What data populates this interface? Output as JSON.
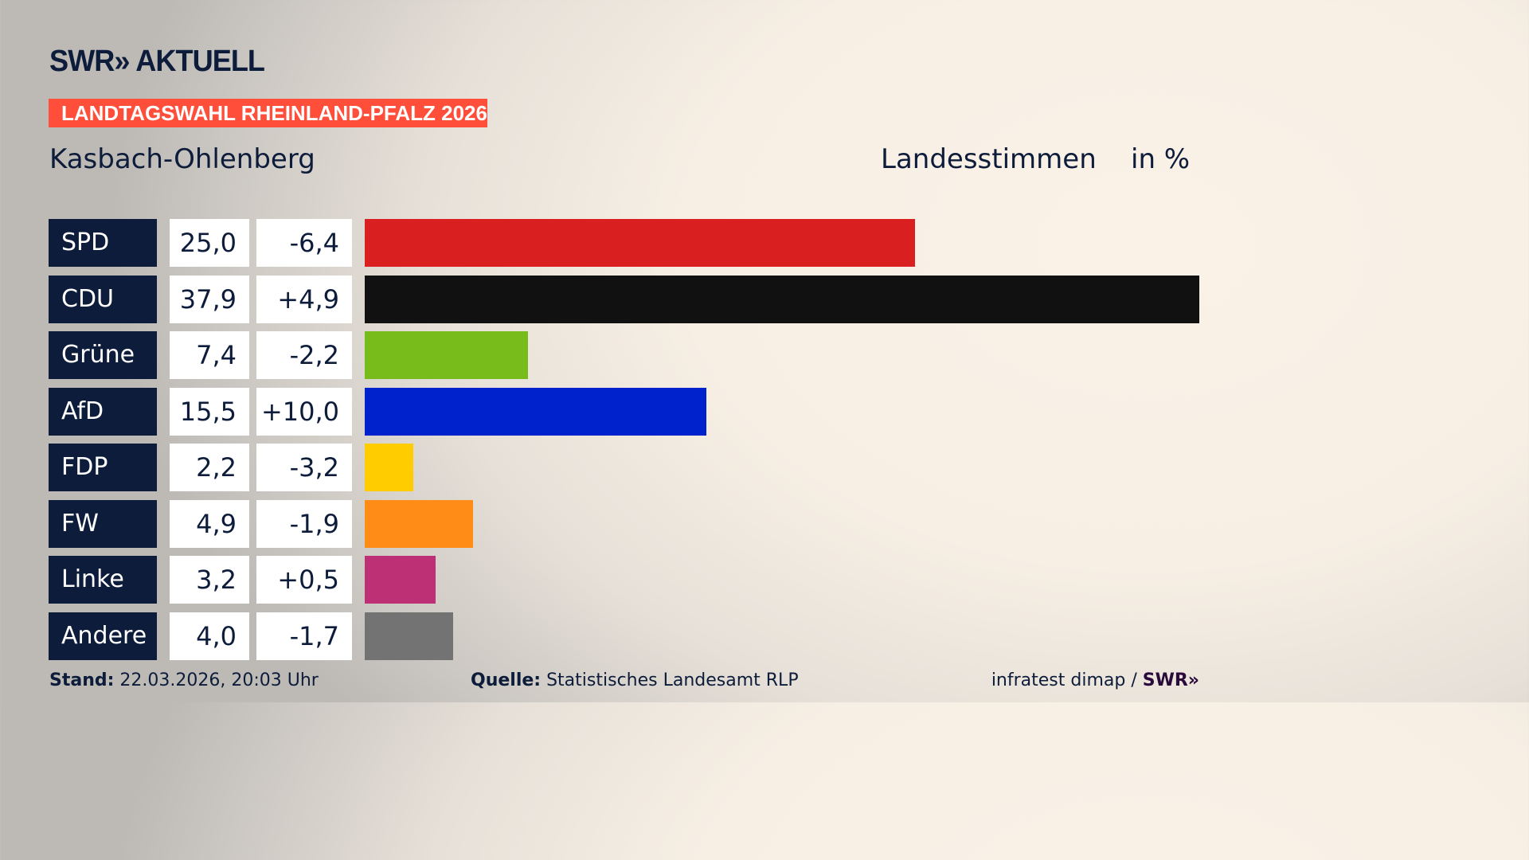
{
  "header": {
    "logo": "SWR» AKTUELL",
    "banner": "LANDTAGSWAHL RHEINLAND-PFALZ 2026",
    "location": "Kasbach-Ohlenberg",
    "vote_type": "Landesstimmen",
    "unit": "in %"
  },
  "colors": {
    "banner": "#ff4e3a",
    "label_bg": "#0c1c3a"
  },
  "chart_data": {
    "type": "bar",
    "orientation": "horizontal",
    "categories": [
      "SPD",
      "CDU",
      "Grüne",
      "AfD",
      "FDP",
      "FW",
      "Linke",
      "Andere"
    ],
    "values": [
      25.0,
      37.9,
      7.4,
      15.5,
      2.2,
      4.9,
      3.2,
      4.0
    ],
    "value_labels": [
      "25,0",
      "37,9",
      "7,4",
      "15,5",
      "2,2",
      "4,9",
      "3,2",
      "4,0"
    ],
    "diff_labels": [
      "-6,4",
      "+4,9",
      "-2,2",
      "+10,0",
      "-3,2",
      "-1,9",
      "+0,5",
      "-1,7"
    ],
    "colors": [
      "#d91f1f",
      "#111111",
      "#78bc1b",
      "#0022cc",
      "#ffcc00",
      "#ff8c16",
      "#be3075",
      "#737373"
    ],
    "xlim": [
      0,
      37.9
    ]
  },
  "footer": {
    "stand_label": "Stand:",
    "stand": "22.03.2026, 20:03 Uhr",
    "source_label": "Quelle:",
    "source": "Statistisches Landesamt RLP",
    "credit": "infratest dimap / ",
    "credit_logo": "SWR»"
  }
}
